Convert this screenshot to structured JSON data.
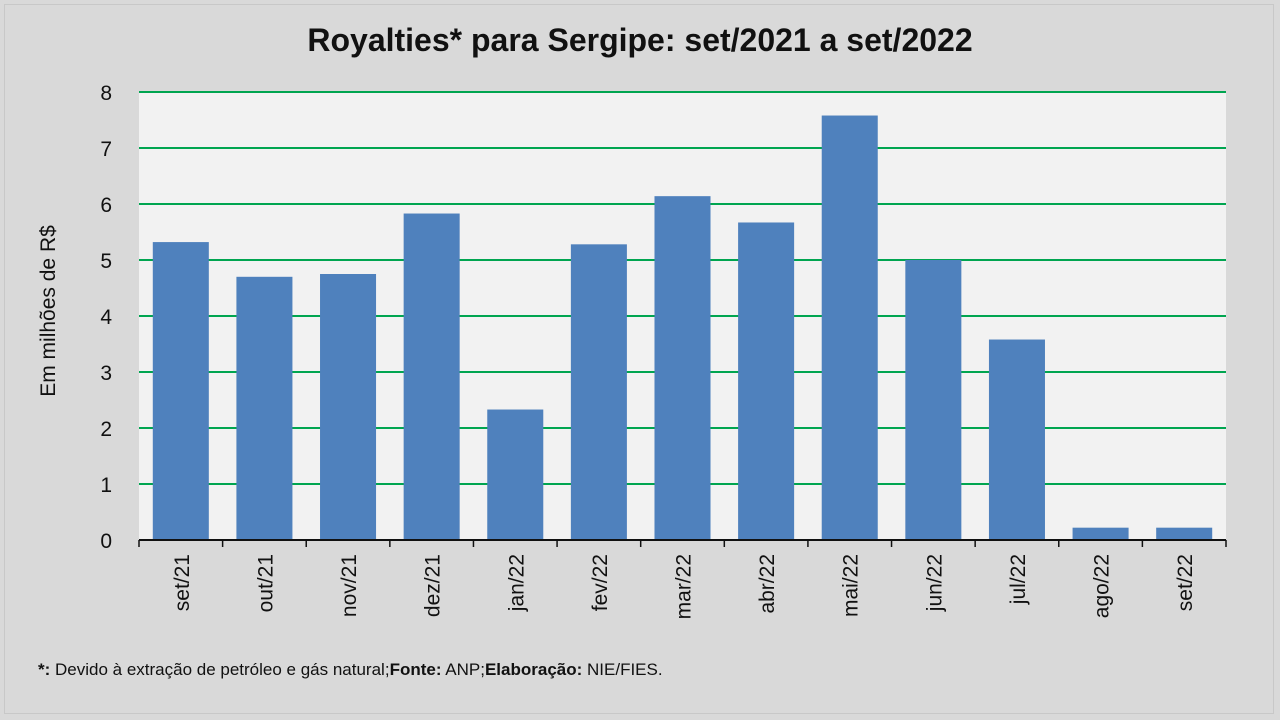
{
  "chart_data": {
    "type": "bar",
    "title": "Royalties* para Sergipe: set/2021 a set/2022",
    "xlabel": "",
    "ylabel": "Em milhões de R$",
    "ylim": [
      0,
      8
    ],
    "yticks": [
      0,
      1,
      2,
      3,
      4,
      5,
      6,
      7,
      8
    ],
    "grid": true,
    "legend": "none",
    "categories": [
      "set/21",
      "out/21",
      "nov/21",
      "dez/21",
      "jan/22",
      "fev/22",
      "mar/22",
      "abr/22",
      "mai/22",
      "jun/22",
      "jul/22",
      "ago/22",
      "set/22"
    ],
    "values": [
      5.32,
      4.7,
      4.75,
      5.83,
      2.33,
      5.28,
      6.14,
      5.67,
      7.58,
      5.0,
      3.58,
      0.22,
      0.22
    ]
  },
  "colors": {
    "bar": "#4f81bd",
    "grid": "#00a550",
    "plot_bg": "#f2f2f2",
    "page_bg": "#d9d9d9"
  },
  "footnote": {
    "mark": "*:",
    "mark_text": " Devido à extração de petróleo e gás natural;",
    "source_label": "Fonte:",
    "source_text": " ANP;",
    "author_label": "Elaboração:",
    "author_text": " NIE/FIES."
  }
}
